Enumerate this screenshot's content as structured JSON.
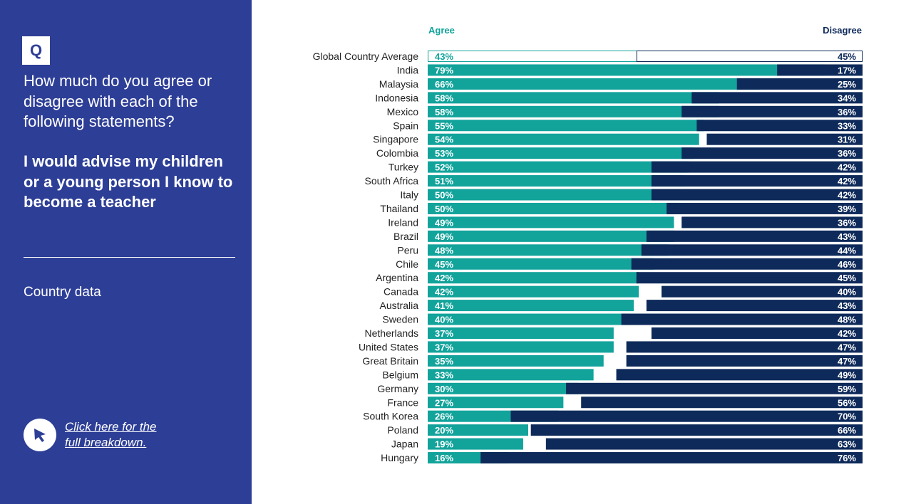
{
  "sidebar": {
    "badge": "Q",
    "question": "How much do you agree or disagree with each of the following statements?",
    "statement": "I would advise my children or a young person I know to become a teacher",
    "section": "Country data",
    "cta_line1": "Click here for the",
    "cta_line2": "full breakdown."
  },
  "chart_data": {
    "type": "bar",
    "orientation": "horizontal-diverging",
    "legend": {
      "agree": "Agree",
      "disagree": "Disagree"
    },
    "colors": {
      "agree": "#12a39b",
      "disagree": "#0e2a5a",
      "average_outline": "#0e2a5a",
      "average_agree_outline": "#12a39b"
    },
    "categories": [
      "Global Country Average",
      "India",
      "Malaysia",
      "Indonesia",
      "Mexico",
      "Spain",
      "Singapore",
      "Colombia",
      "Turkey",
      "South Africa",
      "Italy",
      "Thailand",
      "Ireland",
      "Brazil",
      "Peru",
      "Chile",
      "Argentina",
      "Canada",
      "Australia",
      "Sweden",
      "Netherlands",
      "United States",
      "Great Britain",
      "Belgium",
      "Germany",
      "France",
      "South Korea",
      "Poland",
      "Japan",
      "Hungary"
    ],
    "series": [
      {
        "name": "Agree",
        "values": [
          43,
          79,
          66,
          58,
          58,
          55,
          54,
          53,
          52,
          51,
          50,
          50,
          49,
          49,
          48,
          45,
          42,
          42,
          41,
          40,
          37,
          37,
          35,
          33,
          30,
          27,
          26,
          20,
          19,
          16
        ]
      },
      {
        "name": "Disagree",
        "values": [
          45,
          17,
          25,
          34,
          36,
          33,
          31,
          36,
          42,
          42,
          42,
          39,
          36,
          43,
          44,
          46,
          45,
          40,
          43,
          48,
          42,
          47,
          47,
          49,
          59,
          56,
          70,
          66,
          63,
          76
        ]
      }
    ],
    "value_suffix": "%",
    "xlim": [
      0,
      100
    ]
  }
}
